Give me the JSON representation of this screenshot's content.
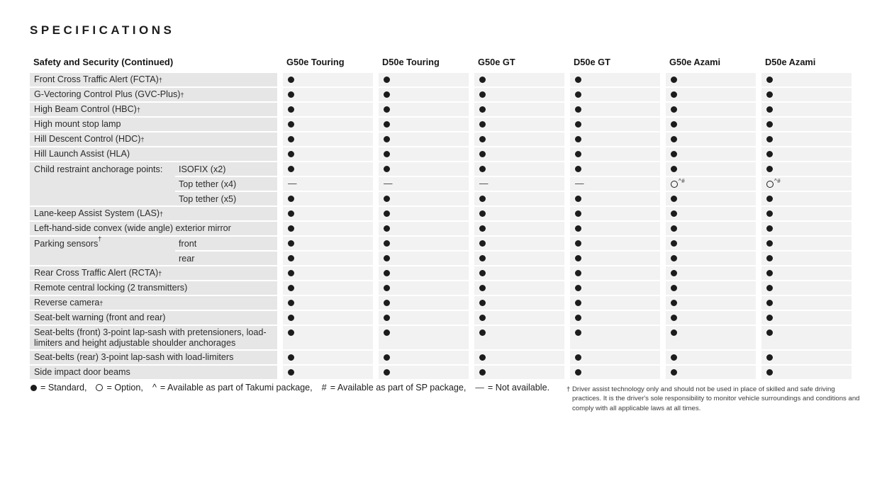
{
  "page_title": "SPECIFICATIONS",
  "table": {
    "section_header": "Safety and Security (Continued)",
    "columns": [
      "G50e Touring",
      "D50e Touring",
      "G50e GT",
      "D50e GT",
      "G50e Azami",
      "D50e Azami"
    ],
    "groups": [
      {
        "label": "Front Cross Traffic Alert (FCTA)†",
        "rows": [
          {
            "cells": [
              "●",
              "●",
              "●",
              "●",
              "●",
              "●"
            ]
          }
        ]
      },
      {
        "label": "G-Vectoring Control Plus (GVC-Plus)†",
        "rows": [
          {
            "cells": [
              "●",
              "●",
              "●",
              "●",
              "●",
              "●"
            ]
          }
        ]
      },
      {
        "label": "High Beam Control (HBC)†",
        "rows": [
          {
            "cells": [
              "●",
              "●",
              "●",
              "●",
              "●",
              "●"
            ]
          }
        ]
      },
      {
        "label": "High mount stop lamp",
        "rows": [
          {
            "cells": [
              "●",
              "●",
              "●",
              "●",
              "●",
              "●"
            ]
          }
        ]
      },
      {
        "label": "Hill Descent Control (HDC)†",
        "rows": [
          {
            "cells": [
              "●",
              "●",
              "●",
              "●",
              "●",
              "●"
            ]
          }
        ]
      },
      {
        "label": "Hill Launch Assist (HLA)",
        "rows": [
          {
            "cells": [
              "●",
              "●",
              "●",
              "●",
              "●",
              "●"
            ]
          }
        ]
      },
      {
        "label": "Child restraint anchorage points:",
        "rows": [
          {
            "sublabel": "ISOFIX (x2)",
            "cells": [
              "●",
              "●",
              "●",
              "●",
              "●",
              "●"
            ]
          },
          {
            "sublabel": "Top tether (x4)",
            "cells": [
              "—",
              "—",
              "—",
              "—",
              "❍^#",
              "❍^#"
            ]
          },
          {
            "sublabel": "Top tether (x5)",
            "cells": [
              "●",
              "●",
              "●",
              "●",
              "●",
              "●"
            ]
          }
        ]
      },
      {
        "label": "Lane-keep Assist System (LAS)†",
        "rows": [
          {
            "cells": [
              "●",
              "●",
              "●",
              "●",
              "●",
              "●"
            ]
          }
        ]
      },
      {
        "label": "Left-hand-side convex (wide angle) exterior mirror",
        "rows": [
          {
            "cells": [
              "●",
              "●",
              "●",
              "●",
              "●",
              "●"
            ]
          }
        ]
      },
      {
        "label": "Parking sensors†",
        "rows": [
          {
            "sublabel": "front",
            "cells": [
              "●",
              "●",
              "●",
              "●",
              "●",
              "●"
            ]
          },
          {
            "sublabel": "rear",
            "cells": [
              "●",
              "●",
              "●",
              "●",
              "●",
              "●"
            ]
          }
        ]
      },
      {
        "label": "Rear Cross Traffic Alert (RCTA)†",
        "rows": [
          {
            "cells": [
              "●",
              "●",
              "●",
              "●",
              "●",
              "●"
            ]
          }
        ]
      },
      {
        "label": "Remote central locking (2 transmitters)",
        "rows": [
          {
            "cells": [
              "●",
              "●",
              "●",
              "●",
              "●",
              "●"
            ]
          }
        ]
      },
      {
        "label": "Reverse camera†",
        "rows": [
          {
            "cells": [
              "●",
              "●",
              "●",
              "●",
              "●",
              "●"
            ]
          }
        ]
      },
      {
        "label": "Seat-belt warning (front and rear)",
        "rows": [
          {
            "cells": [
              "●",
              "●",
              "●",
              "●",
              "●",
              "●"
            ]
          }
        ]
      },
      {
        "label": "Seat-belts (front) 3-point lap-sash with pretensioners, load-limiters and height adjustable shoulder anchorages",
        "tall": true,
        "rows": [
          {
            "cells": [
              "●",
              "●",
              "●",
              "●",
              "●",
              "●"
            ]
          }
        ]
      },
      {
        "label": "Seat-belts (rear) 3-point lap-sash with load-limiters",
        "rows": [
          {
            "cells": [
              "●",
              "●",
              "●",
              "●",
              "●",
              "●"
            ]
          }
        ]
      },
      {
        "label": "Side impact door beams",
        "rows": [
          {
            "cells": [
              "●",
              "●",
              "●",
              "●",
              "●",
              "●"
            ]
          }
        ]
      }
    ]
  },
  "legend": {
    "items": [
      {
        "symbol": "●",
        "text": "= Standard,"
      },
      {
        "symbol": "❍",
        "text": "= Option,"
      },
      {
        "symbol": "^",
        "text": "= Available as part of Takumi package,"
      },
      {
        "symbol": "#",
        "text": "= Available as part of SP package,"
      },
      {
        "symbol": "—",
        "text": "= Not available."
      }
    ]
  },
  "footnote": "† Driver assist technology only and should not be used in place of skilled and safe driving practices. It is the driver's sole responsibility to monitor vehicle surroundings and conditions and comply with all applicable laws at all times.",
  "colors": {
    "label_stripe": "#e6e6e6",
    "data_stripe": "#f2f2f2",
    "text": "#2b2b2b",
    "symbol": "#1c1c1c"
  }
}
